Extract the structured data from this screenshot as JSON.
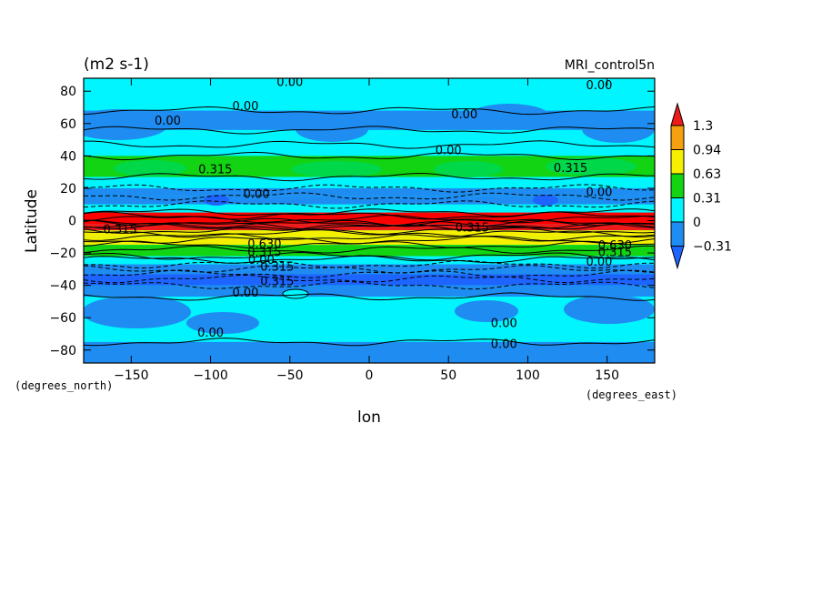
{
  "chart_data": {
    "type": "heatmap",
    "title": "MRI_control5n",
    "units": "(m2 s-1)",
    "xlabel": "lon",
    "ylabel": "Latitude",
    "x_units": "(degrees_east)",
    "y_units": "(degrees_north)",
    "xlim": [
      -180,
      180
    ],
    "ylim": [
      -88,
      88
    ],
    "x_ticks": [
      -150,
      -100,
      -50,
      0,
      50,
      100,
      150
    ],
    "x_tick_labels": [
      "−150",
      "−100",
      "−50",
      "0",
      "50",
      "100",
      "150"
    ],
    "y_ticks": [
      80,
      60,
      40,
      20,
      0,
      -20,
      -40,
      -60,
      -80
    ],
    "y_tick_labels": [
      "80",
      "60",
      "40",
      "20",
      "0",
      "−20",
      "−40",
      "−60",
      "−80"
    ],
    "colorbar": {
      "labels": [
        "1.3",
        "0.94",
        "0.63",
        "0.31",
        "0",
        "−0.31"
      ],
      "levels": [
        1.3,
        0.94,
        0.63,
        0.31,
        0,
        -0.31
      ],
      "colors": [
        "#ee1b1b",
        "#f5a00f",
        "#f5f000",
        "#12d412",
        "#00f5ff",
        "#1e8cf0",
        "#1e64ff"
      ]
    },
    "zonal_bands": [
      {
        "lat": [
          68,
          88
        ],
        "value": 0.1
      },
      {
        "lat": [
          56,
          68
        ],
        "value": -0.05
      },
      {
        "lat": [
          47,
          56
        ],
        "value": 0.05
      },
      {
        "lat": [
          40,
          47
        ],
        "value": 0.15
      },
      {
        "lat": [
          27,
          40
        ],
        "value": 0.38
      },
      {
        "lat": [
          20,
          27
        ],
        "value": 0.15
      },
      {
        "lat": [
          15,
          20
        ],
        "value": -0.05
      },
      {
        "lat": [
          10,
          15
        ],
        "value": -0.1
      },
      {
        "lat": [
          5,
          10
        ],
        "value": 0.1
      },
      {
        "lat": [
          -2,
          5
        ],
        "value": 1.5
      },
      {
        "lat": [
          -6,
          -2
        ],
        "value": 1.0
      },
      {
        "lat": [
          -10,
          -6
        ],
        "value": 0.8
      },
      {
        "lat": [
          -15,
          -10
        ],
        "value": 0.7
      },
      {
        "lat": [
          -22,
          -15
        ],
        "value": 0.35
      },
      {
        "lat": [
          -27,
          -22
        ],
        "value": 0.05
      },
      {
        "lat": [
          -33,
          -27
        ],
        "value": -0.05
      },
      {
        "lat": [
          -40,
          -33
        ],
        "value": -0.35
      },
      {
        "lat": [
          -47,
          -40
        ],
        "value": -0.05
      },
      {
        "lat": [
          -75,
          -47
        ],
        "value": 0.1
      },
      {
        "lat": [
          -88,
          -75
        ],
        "value": -0.05
      }
    ],
    "contour_labels": [
      {
        "text": "0.00",
        "lon": -50,
        "lat": 86
      },
      {
        "text": "0.00",
        "lon": 145,
        "lat": 84
      },
      {
        "text": "0.00",
        "lon": -127,
        "lat": 62
      },
      {
        "text": "0.00",
        "lon": -78,
        "lat": 71
      },
      {
        "text": "0.00",
        "lon": 60,
        "lat": 66
      },
      {
        "text": "0.00",
        "lon": 50,
        "lat": 44
      },
      {
        "text": "0.315",
        "lon": -97,
        "lat": 32
      },
      {
        "text": "0.315",
        "lon": 127,
        "lat": 33
      },
      {
        "text": "0.00",
        "lon": -71,
        "lat": 17
      },
      {
        "text": "0.00",
        "lon": 145,
        "lat": 18
      },
      {
        "text": "0.315",
        "lon": -157,
        "lat": -5
      },
      {
        "text": "0.315",
        "lon": 65,
        "lat": -4
      },
      {
        "text": "0.630",
        "lon": -66,
        "lat": -14
      },
      {
        "text": "0.315",
        "lon": -66,
        "lat": -19
      },
      {
        "text": "0.00",
        "lon": -68,
        "lat": -24
      },
      {
        "text": "0.315",
        "lon": -58,
        "lat": -28
      },
      {
        "text": "0.315",
        "lon": -58,
        "lat": -37
      },
      {
        "text": "0.00",
        "lon": -78,
        "lat": -44
      },
      {
        "text": "0.630",
        "lon": 155,
        "lat": -15
      },
      {
        "text": "0.315",
        "lon": 155,
        "lat": -19
      },
      {
        "text": "0.00",
        "lon": 145,
        "lat": -25
      },
      {
        "text": "0.00",
        "lon": -100,
        "lat": -69
      },
      {
        "text": "0.00",
        "lon": 85,
        "lat": -63
      },
      {
        "text": "0.00",
        "lon": 85,
        "lat": -76
      }
    ]
  }
}
